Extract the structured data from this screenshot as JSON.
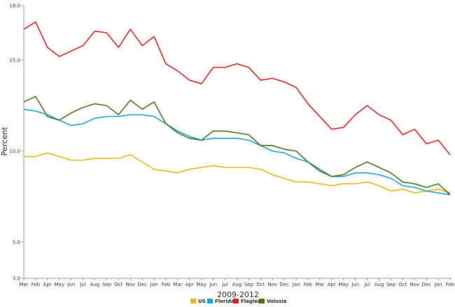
{
  "chart_data": {
    "type": "line",
    "title": "",
    "xlabel": "2009-2012",
    "ylabel": "Percent",
    "yticks": [
      3.0,
      5.0,
      10.0,
      15.0,
      18.0
    ],
    "ytick_labels": [
      "3.0",
      "5.0",
      "10.0",
      "15.0",
      "18.0"
    ],
    "ylim": [
      3.0,
      18.0
    ],
    "grid": false,
    "legend_position": "bottom",
    "categories": [
      "Mar",
      "Feb",
      "Apr",
      "May",
      "Jun",
      "Jul",
      "Aug",
      "Sep",
      "Oct",
      "Nov",
      "Dec",
      "Jan",
      "Feb",
      "Mar",
      "Apr",
      "May",
      "Jun",
      "Jul",
      "Aug",
      "Sep",
      "Oct",
      "Nov",
      "Dec",
      "Jan",
      "Feb",
      "Mar",
      "Apr",
      "May",
      "Jun",
      "Jul",
      "Aug",
      "Sep",
      "Oct",
      "Nov",
      "Dec",
      "Jan",
      "Feb"
    ],
    "series": [
      {
        "name": "US",
        "color": "#e6b818",
        "values": [
          9.7,
          9.7,
          9.9,
          9.7,
          9.5,
          9.5,
          9.6,
          9.6,
          9.6,
          9.8,
          9.4,
          9.0,
          8.9,
          8.8,
          9.0,
          9.1,
          9.2,
          9.1,
          9.1,
          9.1,
          9.0,
          8.7,
          8.5,
          8.3,
          8.3,
          8.2,
          8.1,
          8.2,
          8.2,
          8.3,
          8.1,
          7.8,
          7.9,
          7.7,
          7.8,
          7.9,
          7.7
        ]
      },
      {
        "name": "Florida",
        "color": "#1aa3cc",
        "values": [
          12.3,
          12.2,
          12.0,
          11.7,
          11.4,
          11.5,
          11.8,
          11.9,
          11.9,
          12.0,
          12.0,
          11.9,
          11.5,
          11.1,
          10.8,
          10.6,
          10.7,
          10.7,
          10.7,
          10.6,
          10.3,
          10.0,
          9.9,
          9.6,
          9.4,
          9.0,
          8.6,
          8.6,
          8.8,
          8.8,
          8.7,
          8.5,
          8.1,
          8.0,
          7.8,
          7.7,
          7.6
        ]
      },
      {
        "name": "Flagler",
        "color": "#d42020",
        "values": [
          16.7,
          17.1,
          15.7,
          15.2,
          15.5,
          15.8,
          16.6,
          16.5,
          15.7,
          16.7,
          15.8,
          16.3,
          14.8,
          14.4,
          13.9,
          13.7,
          14.6,
          14.6,
          14.8,
          14.6,
          13.9,
          14.0,
          13.8,
          13.5,
          12.6,
          11.9,
          11.2,
          11.3,
          12.0,
          12.5,
          12.0,
          11.7,
          10.9,
          11.2,
          10.4,
          10.6,
          9.8
        ]
      },
      {
        "name": "Volusia",
        "color": "#4b6e1a",
        "values": [
          12.7,
          13.0,
          11.9,
          11.7,
          12.1,
          12.4,
          12.6,
          12.5,
          12.0,
          12.8,
          12.3,
          12.7,
          11.5,
          11.0,
          10.7,
          10.6,
          11.1,
          11.1,
          11.0,
          10.9,
          10.3,
          10.3,
          10.1,
          10.0,
          9.4,
          8.9,
          8.6,
          8.7,
          9.1,
          9.4,
          9.1,
          8.8,
          8.3,
          8.2,
          8.0,
          8.2,
          7.6
        ]
      }
    ]
  }
}
